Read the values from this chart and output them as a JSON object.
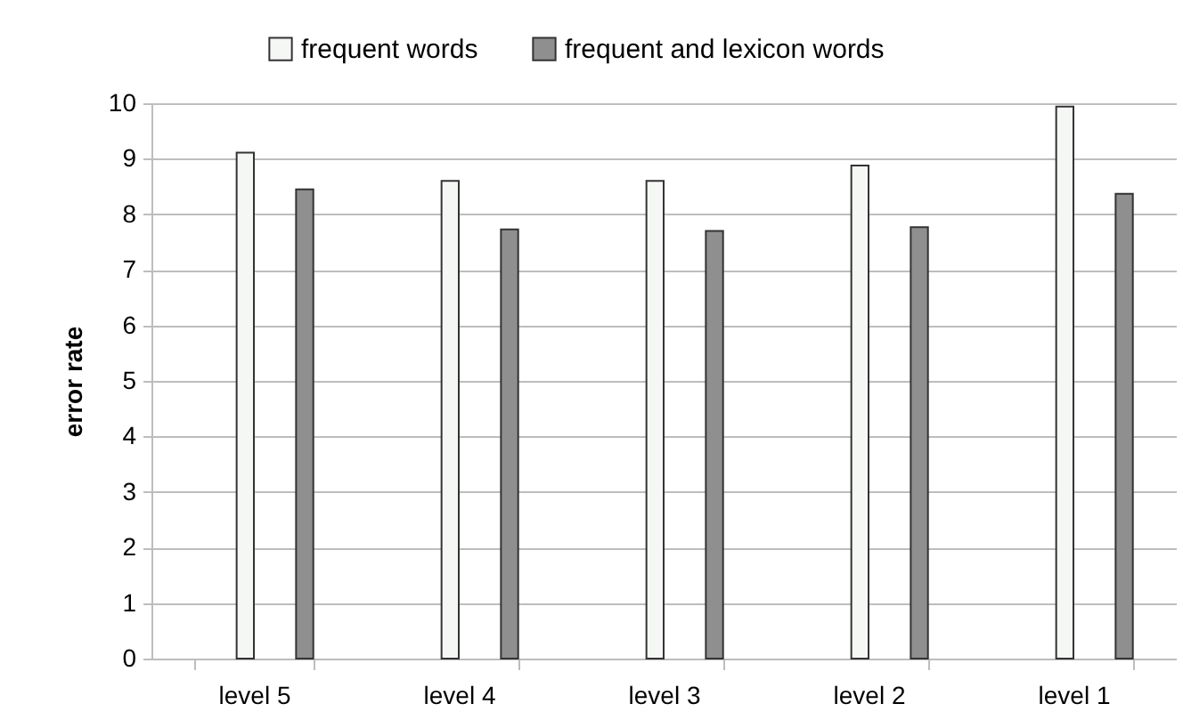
{
  "chart_data": {
    "type": "bar",
    "ylabel": "error rate",
    "categories": [
      "level 5",
      "level 4",
      "level 3",
      "level 2",
      "level 1"
    ],
    "series": [
      {
        "name": "frequent words",
        "color": "#f5f7f5",
        "values": [
          9.11,
          8.6,
          8.6,
          8.88,
          9.94
        ]
      },
      {
        "name": "frequent and lexicon words",
        "color": "#8f8f8f",
        "values": [
          8.45,
          7.73,
          7.7,
          7.77,
          8.37
        ]
      }
    ],
    "ylim": [
      0,
      10
    ],
    "yticks": [
      0,
      1,
      2,
      3,
      4,
      5,
      6,
      7,
      8,
      9,
      10
    ],
    "grid": "y",
    "legend": "top"
  }
}
